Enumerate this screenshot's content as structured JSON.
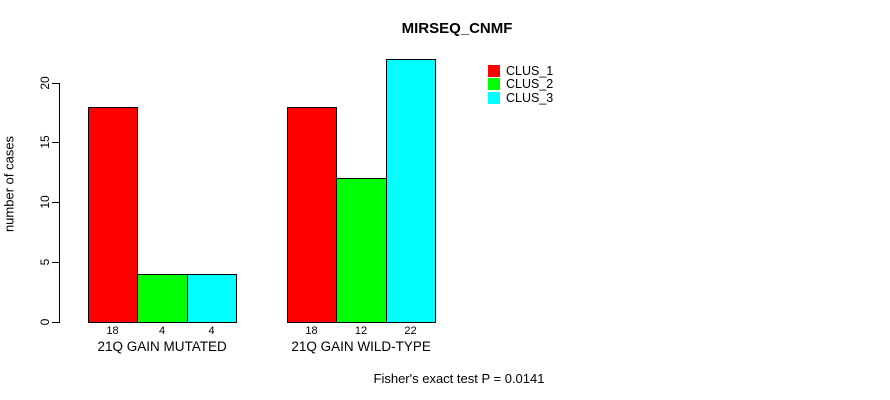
{
  "chart_data": {
    "type": "bar",
    "title": "MIRSEQ_CNMF",
    "ylabel": "number of cases",
    "xlabel": "",
    "categories": [
      "21Q GAIN MUTATED",
      "21Q GAIN WILD-TYPE"
    ],
    "series": [
      {
        "name": "CLUS_1",
        "color": "#ff0000",
        "values": [
          18,
          18
        ]
      },
      {
        "name": "CLUS_2",
        "color": "#00ff00",
        "values": [
          4,
          12
        ]
      },
      {
        "name": "CLUS_3",
        "color": "#00ffff",
        "values": [
          4,
          22
        ]
      }
    ],
    "bar_value_labels": [
      [
        "18",
        "4",
        "4"
      ],
      [
        "18",
        "12",
        "22"
      ]
    ],
    "yticks": [
      0,
      5,
      10,
      15,
      20
    ],
    "ylim": [
      0,
      22
    ],
    "grid": false,
    "legend_position": "top-right",
    "annotation": "Fisher's exact test P = 0.0141"
  }
}
